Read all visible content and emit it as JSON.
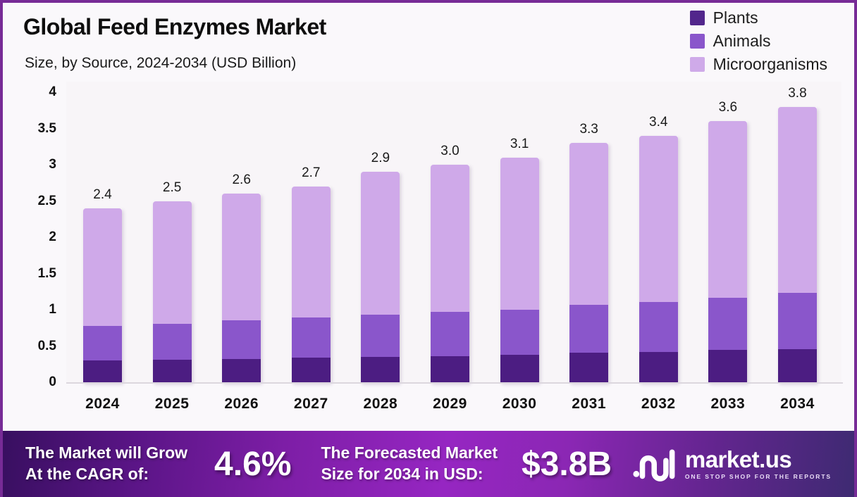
{
  "header": {
    "title": "Global Feed Enzymes Market",
    "subtitle": "Size, by Source, 2024-2034 (USD Billion)"
  },
  "legend": [
    {
      "label": "Plants",
      "color": "#52268c"
    },
    {
      "label": "Animals",
      "color": "#8a56cb"
    },
    {
      "label": "Microorganisms",
      "color": "#cfaae9"
    }
  ],
  "chart_data": {
    "type": "bar",
    "stacked": true,
    "title": "Global Feed Enzymes Market",
    "subtitle": "Size, by Source, 2024-2034 (USD Billion)",
    "xlabel": "",
    "ylabel": "",
    "ylim": [
      0,
      4
    ],
    "grid": false,
    "legend_position": "top-right",
    "categories": [
      "2024",
      "2025",
      "2026",
      "2027",
      "2028",
      "2029",
      "2030",
      "2031",
      "2032",
      "2033",
      "2034"
    ],
    "series": [
      {
        "name": "Plants",
        "color": "#4c1d82",
        "values": [
          0.3,
          0.31,
          0.32,
          0.34,
          0.35,
          0.36,
          0.38,
          0.41,
          0.42,
          0.45,
          0.46
        ]
      },
      {
        "name": "Animals",
        "color": "#8a56cb",
        "values": [
          0.48,
          0.5,
          0.53,
          0.55,
          0.58,
          0.61,
          0.62,
          0.66,
          0.69,
          0.72,
          0.77
        ]
      },
      {
        "name": "Microorganisms",
        "color": "#cfa9e9",
        "values": [
          1.62,
          1.69,
          1.75,
          1.81,
          1.97,
          2.03,
          2.1,
          2.23,
          2.29,
          2.43,
          2.57
        ]
      }
    ],
    "total_labels": [
      "2.4",
      "2.5",
      "2.6",
      "2.7",
      "2.9",
      "3.0",
      "3.1",
      "3.3",
      "3.4",
      "3.6",
      "3.8"
    ],
    "ytick_labels": [
      "0",
      "0.5",
      "1",
      "1.5",
      "2",
      "2.5",
      "3",
      "3.5",
      "4"
    ],
    "ytick_values": [
      0,
      0.5,
      1,
      1.5,
      2,
      2.5,
      3,
      3.5,
      4
    ]
  },
  "banner": {
    "cagr_line1": "The Market will Grow",
    "cagr_line2": "At the CAGR of:",
    "cagr_value": "4.6%",
    "forecast_line1": "The Forecasted Market",
    "forecast_line2": "Size for 2034 in USD:",
    "forecast_value": "$3.8B",
    "logo_text": "market.us",
    "logo_tagline": "ONE STOP SHOP FOR THE REPORTS"
  }
}
